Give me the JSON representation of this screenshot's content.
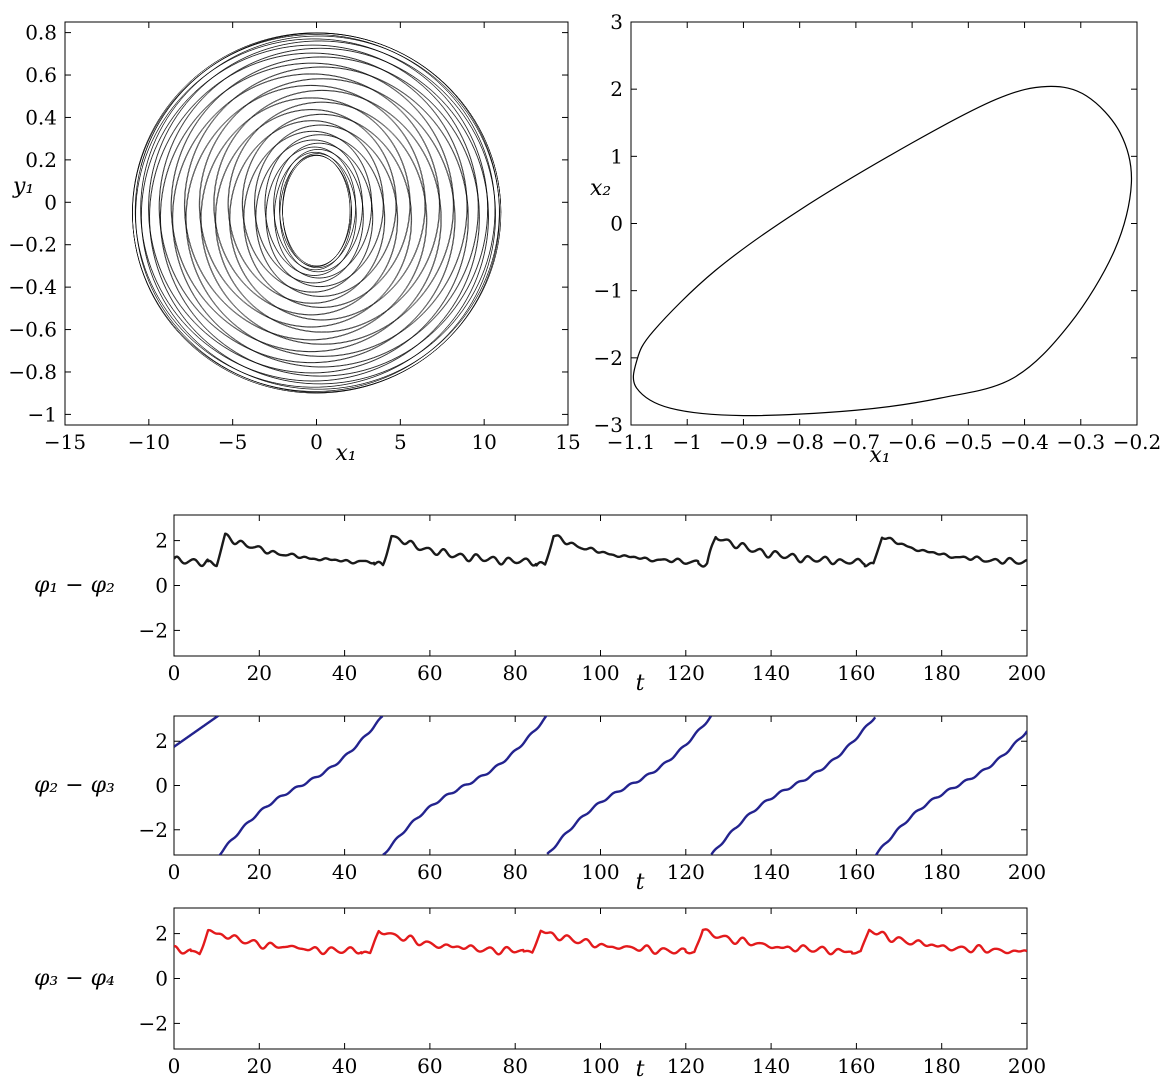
{
  "chart_data": [
    {
      "type": "line",
      "panel": "phase-portrait-x1-y1",
      "xlabel": "x₁",
      "ylabel": "y₁",
      "xlim": [
        -15,
        15
      ],
      "ylim": [
        -1.05,
        0.85
      ],
      "x_ticks": [
        -15,
        -10,
        -5,
        0,
        5,
        10,
        15
      ],
      "x_tick_labels": [
        "−15",
        "−10",
        "−5",
        "0",
        "5",
        "10",
        "15"
      ],
      "y_ticks": [
        0.8,
        0.6,
        0.4,
        0.2,
        0,
        -0.2,
        -0.4,
        -0.6,
        -0.8,
        -1
      ],
      "y_tick_labels": [
        "0.8",
        "0.6",
        "0.4",
        "0.2",
        "0",
        "−0.2",
        "−0.4",
        "−0.6",
        "−0.8",
        "−1"
      ],
      "trajectory": "quasi-periodic torus",
      "outer_ellipse": {
        "x_min": -11,
        "x_max": 11,
        "y_min": -0.9,
        "y_max": 0.8
      },
      "inner_hole": {
        "x_min": -2,
        "x_max": 2,
        "y_min": -0.3,
        "y_max": 0.22
      },
      "color": "#000000"
    },
    {
      "type": "line",
      "panel": "phase-portrait-x1-x2",
      "xlabel": "x₁",
      "ylabel": "x₂",
      "xlim": [
        -1.1,
        -0.2
      ],
      "ylim": [
        -3,
        3
      ],
      "x_ticks": [
        -1.1,
        -1,
        -0.9,
        -0.8,
        -0.7,
        -0.6,
        -0.5,
        -0.4,
        -0.3,
        -0.2
      ],
      "x_tick_labels": [
        "−1.1",
        "−1",
        "−0.9",
        "−0.8",
        "−0.7",
        "−0.6",
        "−0.5",
        "−0.4",
        "−0.3",
        "−0.2"
      ],
      "y_ticks": [
        3,
        2,
        1,
        0,
        -1,
        -2,
        -3
      ],
      "y_tick_labels": [
        "3",
        "2",
        "1",
        "0",
        "−1",
        "−2",
        "−3"
      ],
      "trajectory": "limit cycle",
      "points": [
        [
          -1.09,
          -2.05
        ],
        [
          -1.06,
          -1.6
        ],
        [
          -0.95,
          -0.7
        ],
        [
          -0.8,
          0.2
        ],
        [
          -0.6,
          1.2
        ],
        [
          -0.45,
          1.85
        ],
        [
          -0.36,
          2.04
        ],
        [
          -0.29,
          1.9
        ],
        [
          -0.23,
          1.35
        ],
        [
          -0.21,
          0.6
        ],
        [
          -0.24,
          -0.4
        ],
        [
          -0.32,
          -1.5
        ],
        [
          -0.42,
          -2.3
        ],
        [
          -0.55,
          -2.6
        ],
        [
          -0.7,
          -2.78
        ],
        [
          -0.9,
          -2.86
        ],
        [
          -1.03,
          -2.75
        ],
        [
          -1.09,
          -2.45
        ],
        [
          -1.09,
          -2.05
        ]
      ],
      "color": "#000000"
    },
    {
      "type": "line",
      "panel": "phase-difference-1-2",
      "xlabel": "t",
      "ylabel": "φ₁ − φ₂",
      "xlim": [
        0,
        200
      ],
      "ylim": [
        -3.14,
        3.14
      ],
      "x_ticks": [
        0,
        20,
        40,
        60,
        80,
        100,
        120,
        140,
        160,
        180,
        200
      ],
      "x_tick_labels": [
        "0",
        "20",
        "40",
        "60",
        "80",
        "100",
        "120",
        "140",
        "160",
        "180",
        "200"
      ],
      "y_ticks": [
        2,
        0,
        -2
      ],
      "y_tick_labels": [
        "2",
        "0",
        "−2"
      ],
      "burst_starts": [
        10,
        49,
        87,
        125,
        164
      ],
      "period": 38.5,
      "baseline": 0.95,
      "peak": 2.2,
      "color": "#1a1a1a"
    },
    {
      "type": "line",
      "panel": "phase-difference-2-3",
      "xlabel": "t",
      "ylabel": "φ₂ − φ₃",
      "xlim": [
        0,
        200
      ],
      "ylim": [
        -3.14,
        3.14
      ],
      "x_ticks": [
        0,
        20,
        40,
        60,
        80,
        100,
        120,
        140,
        160,
        180,
        200
      ],
      "x_tick_labels": [
        "0",
        "20",
        "40",
        "60",
        "80",
        "100",
        "120",
        "140",
        "160",
        "180",
        "200"
      ],
      "y_ticks": [
        2,
        0,
        -2
      ],
      "y_tick_labels": [
        "2",
        "0",
        "−2"
      ],
      "wrap_times": [
        10.5,
        49,
        87.5,
        126,
        164.5
      ],
      "wrap_range": [
        -3.14,
        3.14
      ],
      "value_at_t0": 1.75,
      "color": "#23238e"
    },
    {
      "type": "line",
      "panel": "phase-difference-3-4",
      "xlabel": "t",
      "ylabel": "φ₃ − φ₄",
      "xlim": [
        0,
        200
      ],
      "ylim": [
        -3.14,
        3.14
      ],
      "x_ticks": [
        0,
        20,
        40,
        60,
        80,
        100,
        120,
        140,
        160,
        180,
        200
      ],
      "x_tick_labels": [
        "0",
        "20",
        "40",
        "60",
        "80",
        "100",
        "120",
        "140",
        "160",
        "180",
        "200"
      ],
      "y_ticks": [
        2,
        0,
        -2
      ],
      "y_tick_labels": [
        "2",
        "0",
        "−2"
      ],
      "burst_starts": [
        6,
        46,
        84,
        122,
        161
      ],
      "period": 38.5,
      "baseline": 1.15,
      "peak": 2.15,
      "color": "#e31a1c"
    }
  ]
}
